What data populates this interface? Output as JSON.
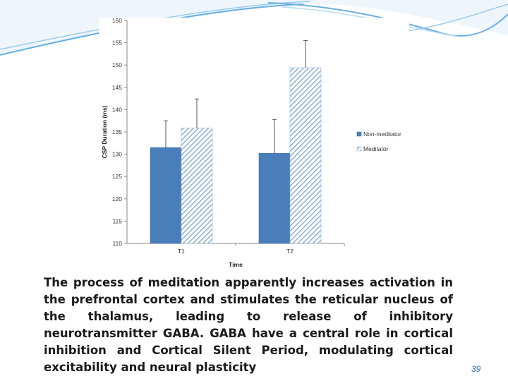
{
  "slide": {
    "caption": "The process of meditation apparently increases activation in the prefrontal cortex  and stimulates the reticular nucleus of the thalamus, leading to release of inhibitory neurotransmitter GABA. GABA have a central role in cortical inhibition and Cortical Silent Period, modulating cortical excitability and neural plasticity",
    "slide_number": "39",
    "accent_color": "#6ab0e0"
  },
  "chart_data": {
    "type": "bar",
    "title": "",
    "xlabel": "Time",
    "ylabel": "CSP Duration (ms)",
    "ylim": [
      110,
      160
    ],
    "yticks": [
      110,
      115,
      120,
      125,
      130,
      135,
      140,
      145,
      150,
      155,
      160
    ],
    "categories": [
      "T1",
      "T2"
    ],
    "grid": false,
    "legend_position": "right",
    "series": [
      {
        "name": "Non-meditator",
        "values": [
          131.5,
          130.2
        ],
        "error": [
          6.0,
          7.6
        ],
        "color": "#4a7ebb",
        "pattern": "solid"
      },
      {
        "name": "Meditator",
        "values": [
          135.9,
          149.4
        ],
        "error": [
          6.5,
          6.1
        ],
        "color": "#a9c4e4",
        "pattern": "diagonal-hatch"
      }
    ]
  }
}
